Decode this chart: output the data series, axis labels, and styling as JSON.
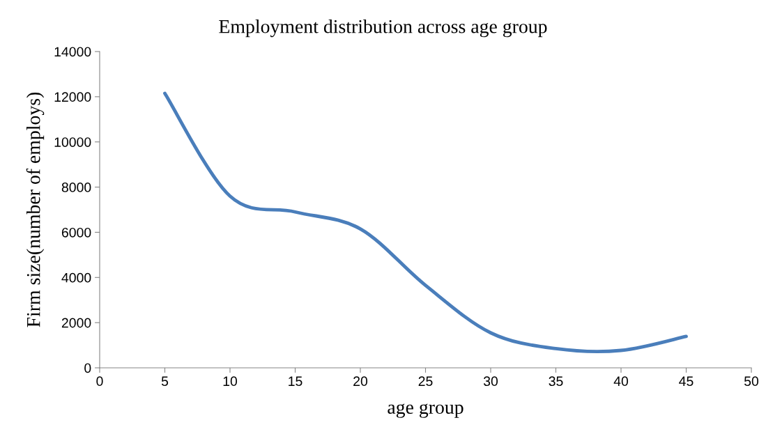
{
  "chart_data": {
    "type": "line",
    "title": "Employment distribution across age group",
    "xlabel": "age group",
    "ylabel": "Firm size(number of employs)",
    "x": [
      5,
      10,
      15,
      20,
      25,
      30,
      35,
      40,
      45
    ],
    "series": [
      {
        "color": "#4a7ebb",
        "values": [
          12150,
          7600,
          6900,
          6150,
          3650,
          1550,
          850,
          770,
          1390
        ]
      }
    ],
    "xlim": [
      0,
      50
    ],
    "xticks": [
      0,
      5,
      10,
      15,
      20,
      25,
      30,
      35,
      40,
      45,
      50
    ],
    "ylim": [
      0,
      14000
    ],
    "yticks": [
      0,
      2000,
      4000,
      6000,
      8000,
      10000,
      12000,
      14000
    ],
    "grid": false,
    "marker": "none",
    "line_style": "solid"
  }
}
